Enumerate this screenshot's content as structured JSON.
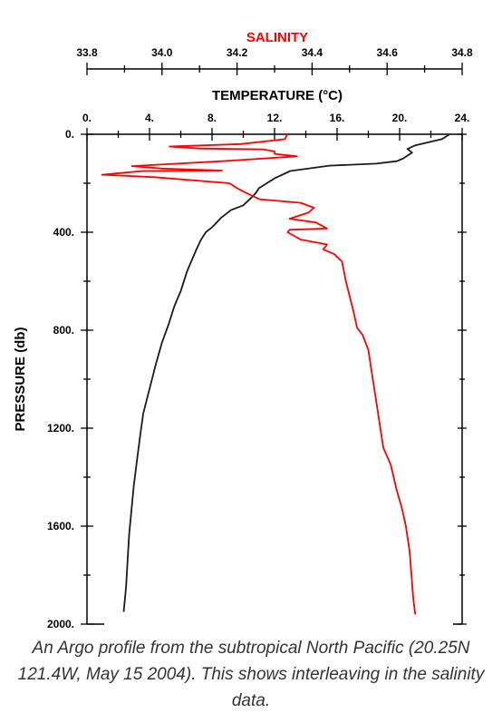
{
  "chart_data": {
    "type": "line",
    "title": "",
    "y_axis": {
      "label": "PRESSURE (db)",
      "range": [
        0,
        2000
      ],
      "inverted": true,
      "ticks": [
        "0.",
        "400.",
        "800.",
        "1200.",
        "1600.",
        "2000."
      ]
    },
    "x_axes": [
      {
        "id": "temperature",
        "label": "TEMPERATURE (°C)",
        "range": [
          0,
          24
        ],
        "ticks": [
          "0.",
          "4.",
          "8.",
          "12.",
          "16.",
          "20.",
          "24."
        ],
        "color": "#000000"
      },
      {
        "id": "salinity",
        "label": "SALINITY",
        "range": [
          33.8,
          34.8
        ],
        "ticks": [
          "33.8",
          "34.0",
          "34.2",
          "34.4",
          "34.6",
          "34.8"
        ],
        "color": "#ff0000"
      }
    ],
    "series": [
      {
        "name": "",
        "axis": "temperature",
        "color": "#1a1a1a",
        "points": [
          [
            23.2,
            0
          ],
          [
            22.7,
            20
          ],
          [
            21.0,
            45
          ],
          [
            20.5,
            60
          ],
          [
            20.8,
            75
          ],
          [
            20.2,
            100
          ],
          [
            19.8,
            110
          ],
          [
            18.5,
            120
          ],
          [
            15.5,
            128
          ],
          [
            13.0,
            150
          ],
          [
            12.0,
            180
          ],
          [
            11.5,
            200
          ],
          [
            11.0,
            220
          ],
          [
            10.8,
            240
          ],
          [
            10.5,
            260
          ],
          [
            10.0,
            290
          ],
          [
            9.2,
            310
          ],
          [
            9.0,
            320
          ],
          [
            8.6,
            340
          ],
          [
            8.0,
            380
          ],
          [
            7.6,
            400
          ],
          [
            7.3,
            430
          ],
          [
            7.0,
            470
          ],
          [
            6.8,
            500
          ],
          [
            6.4,
            560
          ],
          [
            6.0,
            640
          ],
          [
            5.6,
            700
          ],
          [
            5.2,
            780
          ],
          [
            4.8,
            850
          ],
          [
            4.4,
            940
          ],
          [
            4.0,
            1040
          ],
          [
            3.6,
            1140
          ],
          [
            3.4,
            1230
          ],
          [
            3.2,
            1330
          ],
          [
            3.0,
            1430
          ],
          [
            2.85,
            1530
          ],
          [
            2.7,
            1630
          ],
          [
            2.6,
            1740
          ],
          [
            2.5,
            1850
          ],
          [
            2.35,
            1950
          ]
        ]
      },
      {
        "name": "",
        "axis": "salinity",
        "color": "#ff0000",
        "points": [
          [
            34.334,
            0
          ],
          [
            34.328,
            20
          ],
          [
            34.21,
            40
          ],
          [
            34.02,
            50
          ],
          [
            34.1,
            58
          ],
          [
            34.27,
            62
          ],
          [
            34.3,
            70
          ],
          [
            34.3,
            80
          ],
          [
            34.36,
            90
          ],
          [
            34.16,
            110
          ],
          [
            33.92,
            130
          ],
          [
            34.0,
            140
          ],
          [
            34.16,
            148
          ],
          [
            33.95,
            150
          ],
          [
            33.84,
            165
          ],
          [
            33.98,
            175
          ],
          [
            34.18,
            200
          ],
          [
            34.2,
            220
          ],
          [
            34.225,
            240
          ],
          [
            34.26,
            265
          ],
          [
            34.37,
            280
          ],
          [
            34.405,
            300
          ],
          [
            34.39,
            320
          ],
          [
            34.34,
            345
          ],
          [
            34.41,
            360
          ],
          [
            34.44,
            385
          ],
          [
            34.34,
            390
          ],
          [
            34.335,
            400
          ],
          [
            34.37,
            430
          ],
          [
            34.44,
            450
          ],
          [
            34.43,
            470
          ],
          [
            34.46,
            490
          ],
          [
            34.48,
            520
          ],
          [
            34.49,
            600
          ],
          [
            34.5,
            660
          ],
          [
            34.51,
            720
          ],
          [
            34.52,
            790
          ],
          [
            34.535,
            820
          ],
          [
            34.55,
            880
          ],
          [
            34.56,
            980
          ],
          [
            34.57,
            1080
          ],
          [
            34.58,
            1180
          ],
          [
            34.59,
            1280
          ],
          [
            34.61,
            1350
          ],
          [
            34.625,
            1450
          ],
          [
            34.64,
            1530
          ],
          [
            34.65,
            1600
          ],
          [
            34.66,
            1700
          ],
          [
            34.665,
            1800
          ],
          [
            34.67,
            1900
          ],
          [
            34.675,
            1960
          ]
        ]
      }
    ],
    "grid": false,
    "legend": "none"
  },
  "caption": "An Argo profile from the subtropical North Pacific (20.25N 121.4W, May 15 2004). This shows interleaving in the salinity data."
}
